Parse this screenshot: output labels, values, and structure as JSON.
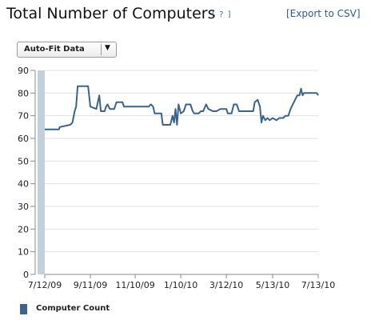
{
  "header": {
    "title": "Total Number of Computers",
    "help_label": "[ ? ]",
    "export_label": "[Export to CSV]"
  },
  "controls": {
    "fit_label": "Auto-Fit Data",
    "dropdown_arrow": "▼"
  },
  "colors": {
    "series": "#3a648c",
    "band": "#c3d0dc",
    "grid": "#e0e0e0",
    "axis": "#888888"
  },
  "chart_data": {
    "type": "line",
    "title": "Total Number of Computers",
    "xlabel": "",
    "ylabel": "",
    "x_range": [
      "2009-07-12",
      "2010-07-13"
    ],
    "ylim": [
      0,
      90
    ],
    "yticks": [
      0,
      10,
      20,
      30,
      40,
      50,
      60,
      70,
      80,
      90
    ],
    "xticks": [
      {
        "date": "2009-07-12",
        "label": "7/12/09"
      },
      {
        "date": "2009-09-11",
        "label": "9/11/09"
      },
      {
        "date": "2009-11-10",
        "label": "11/10/09"
      },
      {
        "date": "2010-01-10",
        "label": "1/10/10"
      },
      {
        "date": "2010-03-12",
        "label": "3/12/10"
      },
      {
        "date": "2010-05-13",
        "label": "5/13/10"
      },
      {
        "date": "2010-07-13",
        "label": "7/13/10"
      }
    ],
    "grid": "horizontal",
    "legend_position": "bottom-left",
    "series": [
      {
        "name": "Computer Count",
        "points": [
          [
            "2009-07-12",
            64
          ],
          [
            "2009-07-31",
            64
          ],
          [
            "2009-08-01",
            65
          ],
          [
            "2009-08-15",
            66
          ],
          [
            "2009-08-18",
            67
          ],
          [
            "2009-08-21",
            72
          ],
          [
            "2009-08-23",
            74
          ],
          [
            "2009-08-25",
            83
          ],
          [
            "2009-09-08",
            83
          ],
          [
            "2009-09-11",
            74
          ],
          [
            "2009-09-19",
            73
          ],
          [
            "2009-09-23",
            79
          ],
          [
            "2009-09-25",
            72
          ],
          [
            "2009-09-30",
            72
          ],
          [
            "2009-10-02",
            74
          ],
          [
            "2009-10-04",
            75
          ],
          [
            "2009-10-07",
            73
          ],
          [
            "2009-10-13",
            73
          ],
          [
            "2009-10-16",
            76
          ],
          [
            "2009-10-24",
            76
          ],
          [
            "2009-10-26",
            74
          ],
          [
            "2009-11-28",
            74
          ],
          [
            "2009-12-01",
            75
          ],
          [
            "2009-12-04",
            74
          ],
          [
            "2009-12-06",
            71
          ],
          [
            "2009-12-15",
            71
          ],
          [
            "2009-12-17",
            66
          ],
          [
            "2009-12-27",
            66
          ],
          [
            "2009-12-30",
            70
          ],
          [
            "2010-01-01",
            67
          ],
          [
            "2010-01-03",
            73
          ],
          [
            "2010-01-05",
            66
          ],
          [
            "2010-01-07",
            75
          ],
          [
            "2010-01-10",
            71
          ],
          [
            "2010-01-14",
            72
          ],
          [
            "2010-01-17",
            75
          ],
          [
            "2010-01-23",
            75
          ],
          [
            "2010-01-26",
            72
          ],
          [
            "2010-01-28",
            71
          ],
          [
            "2010-01-31",
            71
          ],
          [
            "2010-02-03",
            71
          ],
          [
            "2010-02-06",
            72
          ],
          [
            "2010-02-09",
            72
          ],
          [
            "2010-02-13",
            75
          ],
          [
            "2010-02-16",
            73
          ],
          [
            "2010-02-22",
            72
          ],
          [
            "2010-02-27",
            72
          ],
          [
            "2010-03-04",
            73
          ],
          [
            "2010-03-12",
            73
          ],
          [
            "2010-03-14",
            71
          ],
          [
            "2010-03-19",
            71
          ],
          [
            "2010-03-22",
            75
          ],
          [
            "2010-03-26",
            75
          ],
          [
            "2010-03-29",
            72
          ],
          [
            "2010-04-17",
            72
          ],
          [
            "2010-04-19",
            76
          ],
          [
            "2010-04-23",
            77
          ],
          [
            "2010-04-26",
            74
          ],
          [
            "2010-04-28",
            67
          ],
          [
            "2010-04-30",
            70
          ],
          [
            "2010-05-03",
            68
          ],
          [
            "2010-05-06",
            69
          ],
          [
            "2010-05-09",
            68
          ],
          [
            "2010-05-13",
            69
          ],
          [
            "2010-05-18",
            68
          ],
          [
            "2010-05-22",
            69
          ],
          [
            "2010-05-27",
            69
          ],
          [
            "2010-05-30",
            70
          ],
          [
            "2010-06-03",
            70
          ],
          [
            "2010-06-06",
            73
          ],
          [
            "2010-06-09",
            75
          ],
          [
            "2010-06-12",
            77
          ],
          [
            "2010-06-15",
            79
          ],
          [
            "2010-06-18",
            79
          ],
          [
            "2010-06-20",
            82
          ],
          [
            "2010-06-22",
            79
          ],
          [
            "2010-06-24",
            80
          ],
          [
            "2010-07-08",
            80
          ],
          [
            "2010-07-11",
            80
          ],
          [
            "2010-07-13",
            79
          ]
        ]
      }
    ]
  }
}
